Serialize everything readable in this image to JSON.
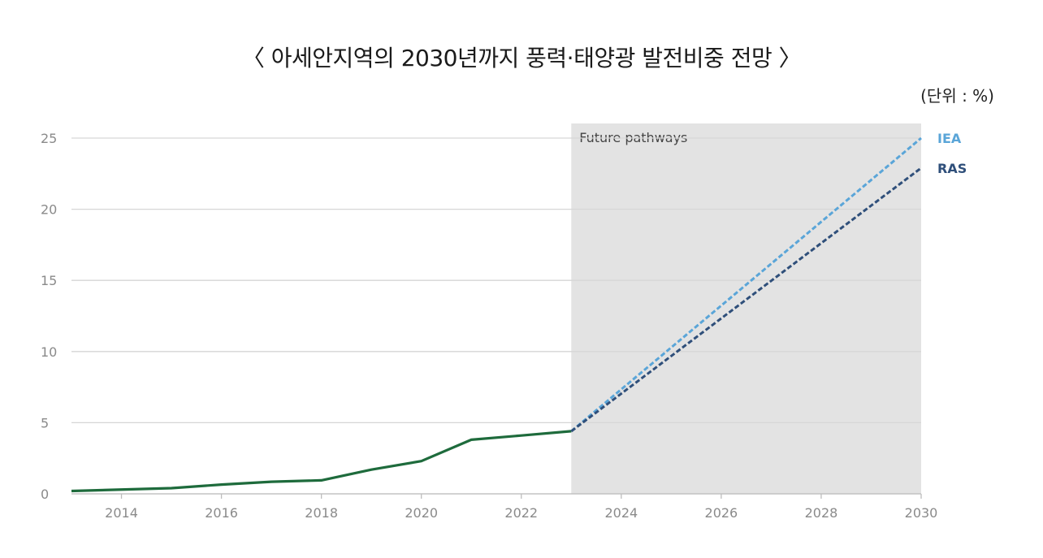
{
  "title": "〈 아세안지역의 2030년까지 풍력·태양광 발전비중 전망 〉",
  "unit_label": "(단위 : %)",
  "colors": {
    "historical": "#1e6b3c",
    "IEA": "#5aa5d8",
    "RAS": "#2f4f7a",
    "shade": "#e3e3e3",
    "grid": "#d6d6d6"
  },
  "chart_data": {
    "type": "line",
    "xlim": [
      2013,
      2030
    ],
    "ylim": [
      0,
      25
    ],
    "x_ticks": [
      "2014",
      "2016",
      "2018",
      "2020",
      "2022",
      "2024",
      "2026",
      "2028",
      "2030"
    ],
    "y_ticks": [
      "0",
      "5",
      "10",
      "15",
      "20",
      "25"
    ],
    "shaded_region": {
      "from": 2023,
      "to": 2030,
      "label": "Future pathways"
    },
    "grid": true,
    "legend": "right-end labels",
    "series": [
      {
        "key": "historical",
        "style": "solid",
        "points": [
          [
            2013,
            0.2
          ],
          [
            2015,
            0.4
          ],
          [
            2016,
            0.65
          ],
          [
            2017,
            0.85
          ],
          [
            2018,
            0.95
          ],
          [
            2019,
            1.7
          ],
          [
            2020,
            2.3
          ],
          [
            2021,
            3.8
          ],
          [
            2022,
            4.1
          ],
          [
            2023,
            4.4
          ]
        ]
      },
      {
        "key": "IEA",
        "name": "IEA",
        "style": "dashed",
        "points": [
          [
            2023,
            4.4
          ],
          [
            2030,
            25
          ]
        ]
      },
      {
        "key": "RAS",
        "name": "RAS",
        "style": "dashed",
        "points": [
          [
            2023,
            4.4
          ],
          [
            2030,
            22.9
          ]
        ]
      }
    ]
  }
}
